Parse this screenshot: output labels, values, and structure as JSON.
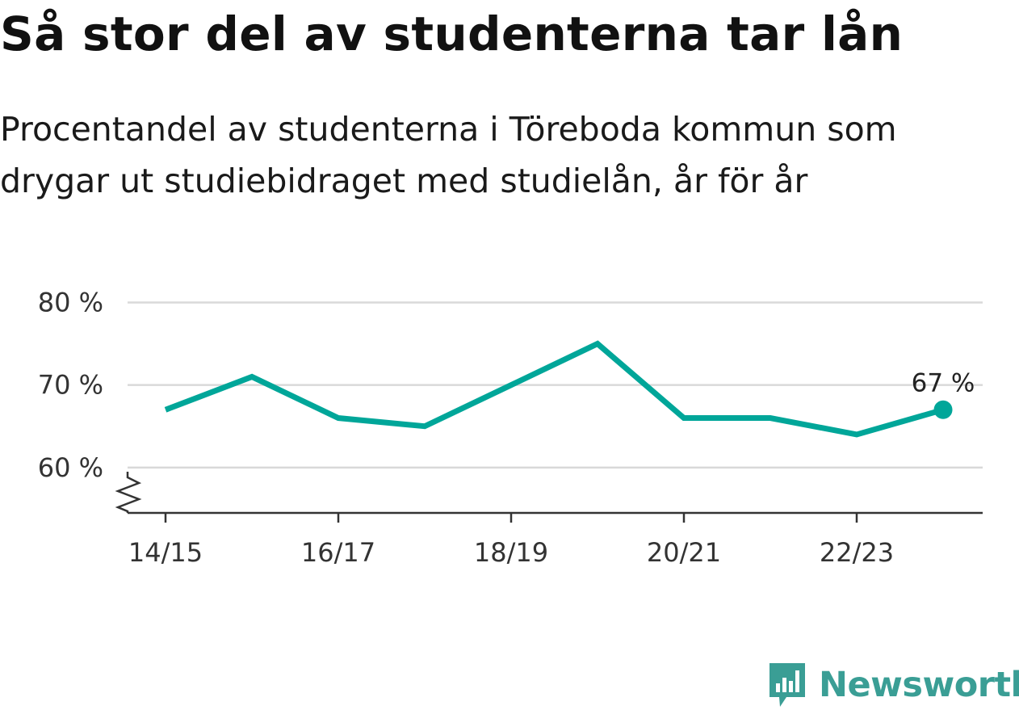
{
  "title": "Så stor del av studenterna tar lån",
  "subtitle": "Procentandel av studenterna i Töreboda kommun som drygar ut studiebidraget med studielån, år för år",
  "brand": {
    "name": "Newsworthy",
    "icon": "newsworthy-logo-icon",
    "color": "#3a9e95"
  },
  "chart_data": {
    "type": "line",
    "x": [
      "14/15",
      "15/16",
      "16/17",
      "17/18",
      "18/19",
      "19/20",
      "20/21",
      "21/22",
      "22/23",
      "23/24"
    ],
    "values": [
      67,
      71,
      66,
      65,
      70,
      75,
      66,
      66,
      64,
      67
    ],
    "x_tick_labels": [
      "14/15",
      "16/17",
      "18/19",
      "20/21",
      "22/23"
    ],
    "y_ticks": [
      60,
      70,
      80
    ],
    "y_tick_labels": [
      "60 %",
      "70 %",
      "80 %"
    ],
    "ylim": [
      54.5,
      80
    ],
    "y_axis_broken": true,
    "grid": true,
    "line_color": "#00a699",
    "end_label": "67 %"
  }
}
